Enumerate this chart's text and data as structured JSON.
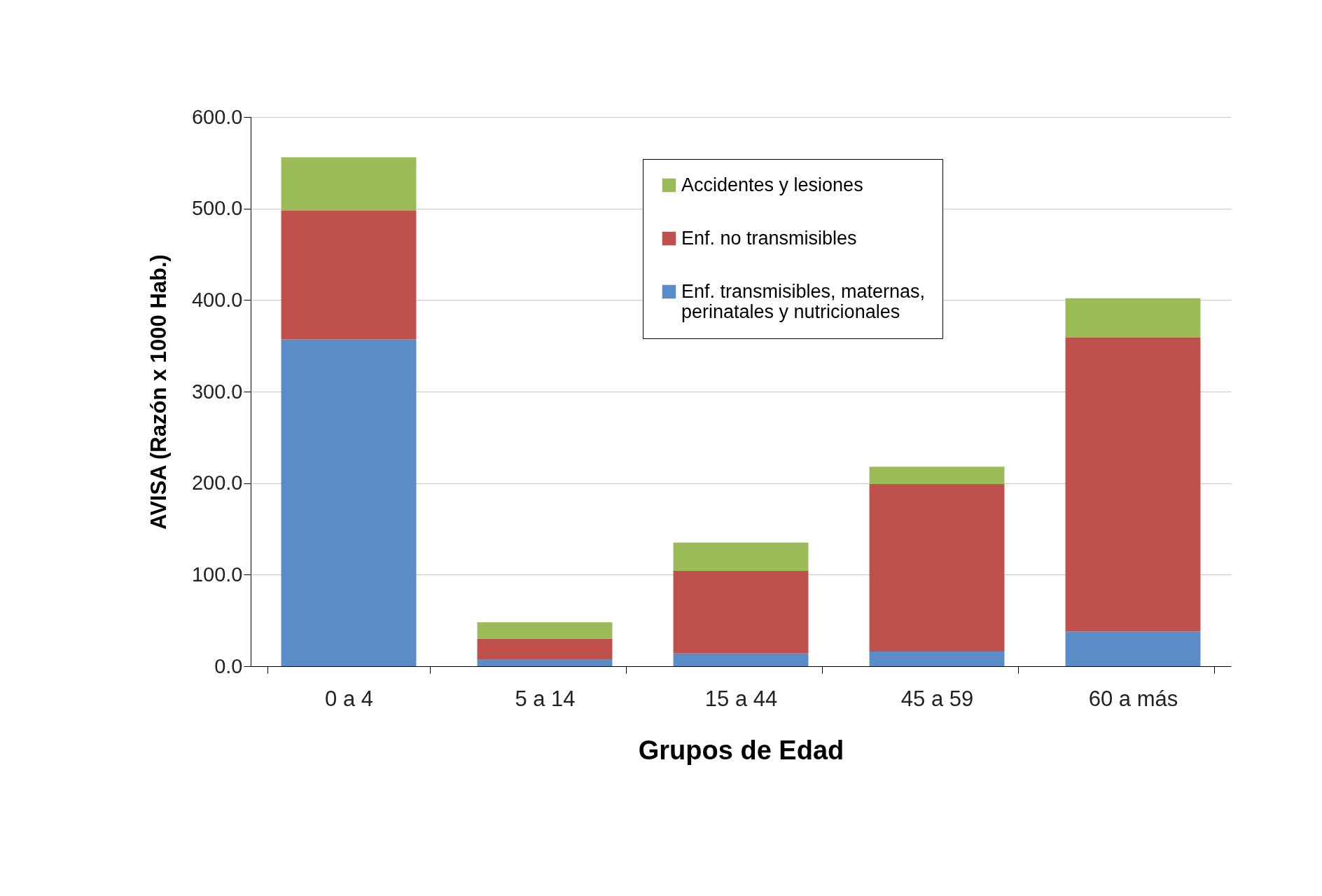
{
  "chart_data": {
    "type": "bar",
    "stacked": true,
    "xlabel": "Grupos de Edad",
    "ylabel": "AVISA (Razón x 1000 Hab.)",
    "categories": [
      "0 a 4",
      "5 a 14",
      "15 a 44",
      "45 a 59",
      "60 a más"
    ],
    "series": [
      {
        "name": "Enf. transmisibles, maternas, perinatales y nutricionales",
        "color": "#5a8dc8",
        "values": [
          357,
          7,
          14,
          16,
          38
        ]
      },
      {
        "name": "Enf. no transmisibles",
        "color": "#c0504d",
        "values": [
          141,
          23,
          90,
          183,
          321
        ]
      },
      {
        "name": "Accidentes y lesiones",
        "color": "#9bbb59",
        "values": [
          58,
          18,
          31,
          19,
          43
        ]
      }
    ],
    "ylim": [
      0,
      600
    ],
    "yticks": [
      {
        "value": 0,
        "label": "0.0"
      },
      {
        "value": 100,
        "label": "100.0"
      },
      {
        "value": 200,
        "label": "200.0"
      },
      {
        "value": 300,
        "label": "300.0"
      },
      {
        "value": 400,
        "label": "400.0"
      },
      {
        "value": 500,
        "label": "500.0"
      },
      {
        "value": 600,
        "label": "600.0"
      }
    ],
    "grid": "y",
    "legend": "top"
  }
}
